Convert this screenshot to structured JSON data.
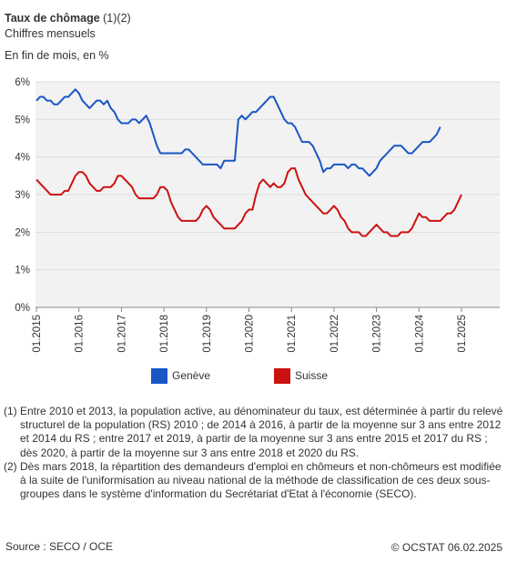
{
  "header": {
    "title_bold": "Taux de chômage",
    "title_suffix": " (1)(2)",
    "subtitle": "Chiffres mensuels",
    "unit": "En fin de mois, en %"
  },
  "legend": {
    "geneve": "Genève",
    "suisse": "Suisse"
  },
  "notes": [
    {
      "num": "(1)",
      "text": "Entre 2010 et 2013, la population active, au dénominateur du taux, est déterminée à partir du relevé structurel de la population (RS) 2010 ; de 2014 à 2016, à partir de la moyenne sur 3 ans entre 2012 et 2014 du RS ; entre 2017 et 2019, à partir de la moyenne sur 3 ans entre 2015 et 2017 du RS ; dès 2020, à partir de la moyenne sur 3 ans entre 2018 et 2020 du RS."
    },
    {
      "num": "(2)",
      "text": "Dès mars 2018, la répartition des demandeurs d'emploi en chômeurs et non-chômeurs est modifiée à la suite de l'uniformisation au niveau national de la méthode de classification de ces deux sous-groupes dans le système d'information du Secrétariat d'Etat à l'économie (SECO)."
    }
  ],
  "footer": {
    "source": "Source : SECO / OCE",
    "copyright": "© OCSTAT 06.02.2025"
  },
  "chart_data": {
    "type": "line",
    "title": "Taux de chômage (1)(2)",
    "subtitle": "Chiffres mensuels",
    "ylabel": "En fin de mois, en %",
    "ylim": [
      0,
      6
    ],
    "yticks": [
      "0%",
      "1%",
      "2%",
      "3%",
      "4%",
      "5%",
      "6%"
    ],
    "x_start": "01.2015",
    "x_end": "01.2025",
    "xticks": [
      "01.2015",
      "01.2016",
      "01.2017",
      "01.2018",
      "01.2019",
      "01.2020",
      "01.2021",
      "01.2022",
      "01.2023",
      "01.2024",
      "01.2025"
    ],
    "grid": "horizontal",
    "legend_position": "bottom",
    "colors": {
      "geneve": "#1a56c4",
      "suisse": "#cc1111",
      "plot_bg": "#f2f2f2",
      "grid": "#dddddd"
    },
    "series": [
      {
        "name": "Genève",
        "color": "#1a56c4",
        "values": [
          5.5,
          5.6,
          5.6,
          5.5,
          5.5,
          5.4,
          5.4,
          5.5,
          5.6,
          5.6,
          5.7,
          5.8,
          5.7,
          5.5,
          5.4,
          5.3,
          5.4,
          5.5,
          5.5,
          5.4,
          5.5,
          5.3,
          5.2,
          5.0,
          4.9,
          4.9,
          4.9,
          5.0,
          5.0,
          4.9,
          5.0,
          5.1,
          4.9,
          4.6,
          4.3,
          4.1,
          4.1,
          4.1,
          4.1,
          4.1,
          4.1,
          4.1,
          4.2,
          4.2,
          4.1,
          4.0,
          3.9,
          3.8,
          3.8,
          3.8,
          3.8,
          3.8,
          3.7,
          3.9,
          3.9,
          3.9,
          3.9,
          5.0,
          5.1,
          5.0,
          5.1,
          5.2,
          5.2,
          5.3,
          5.4,
          5.5,
          5.6,
          5.6,
          5.4,
          5.2,
          5.0,
          4.9,
          4.9,
          4.8,
          4.6,
          4.4,
          4.4,
          4.4,
          4.3,
          4.1,
          3.9,
          3.6,
          3.7,
          3.7,
          3.8,
          3.8,
          3.8,
          3.8,
          3.7,
          3.8,
          3.8,
          3.7,
          3.7,
          3.6,
          3.5,
          3.6,
          3.7,
          3.9,
          4.0,
          4.1,
          4.2,
          4.3,
          4.3,
          4.3,
          4.2,
          4.1,
          4.1,
          4.2,
          4.3,
          4.4,
          4.4,
          4.4,
          4.5,
          4.6,
          4.8
        ]
      },
      {
        "name": "Suisse",
        "color": "#cc1111",
        "values": [
          3.4,
          3.3,
          3.2,
          3.1,
          3.0,
          3.0,
          3.0,
          3.0,
          3.1,
          3.1,
          3.3,
          3.5,
          3.6,
          3.6,
          3.5,
          3.3,
          3.2,
          3.1,
          3.1,
          3.2,
          3.2,
          3.2,
          3.3,
          3.5,
          3.5,
          3.4,
          3.3,
          3.2,
          3.0,
          2.9,
          2.9,
          2.9,
          2.9,
          2.9,
          3.0,
          3.2,
          3.2,
          3.1,
          2.8,
          2.6,
          2.4,
          2.3,
          2.3,
          2.3,
          2.3,
          2.3,
          2.4,
          2.6,
          2.7,
          2.6,
          2.4,
          2.3,
          2.2,
          2.1,
          2.1,
          2.1,
          2.1,
          2.2,
          2.3,
          2.5,
          2.6,
          2.6,
          3.0,
          3.3,
          3.4,
          3.3,
          3.2,
          3.3,
          3.2,
          3.2,
          3.3,
          3.6,
          3.7,
          3.7,
          3.4,
          3.2,
          3.0,
          2.9,
          2.8,
          2.7,
          2.6,
          2.5,
          2.5,
          2.6,
          2.7,
          2.6,
          2.4,
          2.3,
          2.1,
          2.0,
          2.0,
          2.0,
          1.9,
          1.9,
          2.0,
          2.1,
          2.2,
          2.1,
          2.0,
          2.0,
          1.9,
          1.9,
          1.9,
          2.0,
          2.0,
          2.0,
          2.1,
          2.3,
          2.5,
          2.4,
          2.4,
          2.3,
          2.3,
          2.3,
          2.3,
          2.4,
          2.5,
          2.5,
          2.6,
          2.8,
          3.0
        ]
      }
    ]
  }
}
